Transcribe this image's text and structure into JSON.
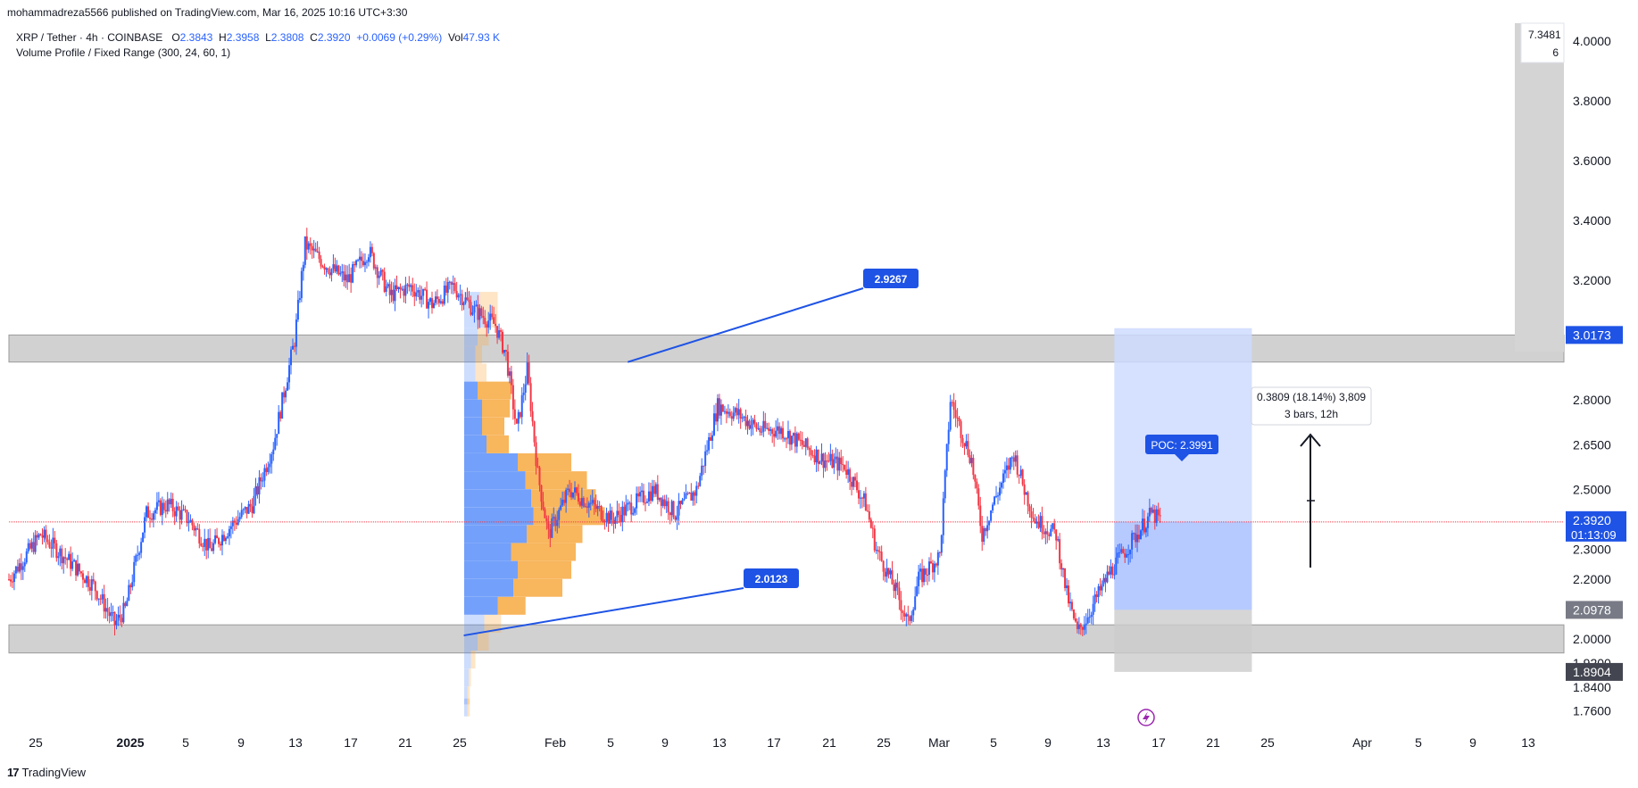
{
  "header": {
    "published": "mohammadreza5566 published on TradingView.com, Mar 16, 2025 10:16 UTC+3:30"
  },
  "legend": {
    "symbol": "XRP / Tether · 4h · COINBASE",
    "o_label": "O",
    "o": "2.3843",
    "h_label": "H",
    "h": "2.3958",
    "l_label": "L",
    "l": "2.3808",
    "c_label": "C",
    "c": "2.3920",
    "change": "+0.0069 (+0.29%)",
    "vol_label": "Vol",
    "vol": "47.93 K",
    "indicator": "Volume Profile / Fixed Range (300, 24, 60, 1)"
  },
  "footer": {
    "logo": "17",
    "brand": "TradingView"
  },
  "colors": {
    "up": "#089981",
    "candle_up": "#2962ff",
    "candle_down": "#f23645",
    "zone": "#cfcfcf",
    "vp_blue": "#5b8ff9",
    "vp_orange": "#f7a941",
    "label_blue": "#1e53e5",
    "measure": "#cfdbff"
  },
  "chart_data": {
    "type": "candlestick",
    "title": "XRP / Tether · 4h · COINBASE",
    "x_ticks": [
      "25",
      "2025",
      "5",
      "9",
      "13",
      "17",
      "21",
      "25",
      "Feb",
      "5",
      "9",
      "13",
      "17",
      "21",
      "25",
      "Mar",
      "5",
      "9",
      "13",
      "17",
      "21",
      "25",
      "Apr",
      "5",
      "9",
      "13"
    ],
    "y_ticks": [
      4.0,
      3.8,
      3.6,
      3.4,
      3.2,
      2.8,
      2.65,
      2.5,
      2.3,
      2.2,
      2.0,
      1.92,
      1.84,
      1.76
    ],
    "y_tick_labels": [
      "4.0000",
      "3.8000",
      "3.6000",
      "3.4000",
      "3.2000",
      "2.8000",
      "2.6500",
      "2.5000",
      "2.3000",
      "2.2000",
      "2.0000",
      "1.9200",
      "1.8400",
      "1.7600"
    ],
    "ylim": [
      1.72,
      4.06
    ],
    "price_path": [
      [
        0,
        2.2
      ],
      [
        3,
        2.35
      ],
      [
        6,
        2.25
      ],
      [
        8,
        2.18
      ],
      [
        10,
        2.05
      ],
      [
        11,
        2.1
      ],
      [
        13,
        2.42
      ],
      [
        15,
        2.45
      ],
      [
        17,
        2.4
      ],
      [
        19,
        2.3
      ],
      [
        21,
        2.38
      ],
      [
        23,
        2.45
      ],
      [
        25,
        2.65
      ],
      [
        27,
        3.0
      ],
      [
        28,
        3.32
      ],
      [
        30,
        3.25
      ],
      [
        32,
        3.2
      ],
      [
        34,
        3.3
      ],
      [
        36,
        3.15
      ],
      [
        38,
        3.18
      ],
      [
        40,
        3.12
      ],
      [
        42,
        3.18
      ],
      [
        44,
        3.1
      ],
      [
        46,
        3.05
      ],
      [
        47,
        2.95
      ],
      [
        48,
        2.7
      ],
      [
        49,
        2.9
      ],
      [
        50,
        2.55
      ],
      [
        51,
        2.35
      ],
      [
        53,
        2.5
      ],
      [
        55,
        2.45
      ],
      [
        57,
        2.4
      ],
      [
        59,
        2.45
      ],
      [
        61,
        2.5
      ],
      [
        63,
        2.42
      ],
      [
        65,
        2.5
      ],
      [
        67,
        2.78
      ],
      [
        69,
        2.75
      ],
      [
        71,
        2.7
      ],
      [
        73,
        2.7
      ],
      [
        75,
        2.65
      ],
      [
        77,
        2.6
      ],
      [
        79,
        2.58
      ],
      [
        81,
        2.45
      ],
      [
        82,
        2.3
      ],
      [
        84,
        2.15
      ],
      [
        85,
        2.05
      ],
      [
        86,
        2.2
      ],
      [
        88,
        2.28
      ],
      [
        89,
        2.8
      ],
      [
        91,
        2.6
      ],
      [
        92,
        2.35
      ],
      [
        93,
        2.45
      ],
      [
        95,
        2.62
      ],
      [
        96,
        2.5
      ],
      [
        97,
        2.4
      ],
      [
        99,
        2.35
      ],
      [
        100,
        2.15
      ],
      [
        101,
        2.02
      ],
      [
        102,
        2.08
      ],
      [
        104,
        2.22
      ],
      [
        106,
        2.32
      ],
      [
        108,
        2.42
      ],
      [
        109,
        2.392
      ]
    ],
    "x_range": [
      0,
      147
    ],
    "current_price": 2.392,
    "current_price_label": "2.3920",
    "countdown": "01:13:09",
    "resistance_zone": [
      2.9267,
      3.0173
    ],
    "support_zone": [
      1.9538,
      2.0478
    ],
    "annotations": [
      {
        "label": "2.9267",
        "value": 2.9267
      },
      {
        "label": "2.0123",
        "value": 2.0123
      },
      {
        "label": "POC: 2.3991",
        "value": 2.3991
      }
    ],
    "axis_markers": [
      {
        "label": "3.0173",
        "value": 3.0173,
        "color": "#1e53e5"
      },
      {
        "label": "2.3920",
        "value": 2.392,
        "color": "#1e53e5"
      },
      {
        "label": "2.0978",
        "value": 2.0978,
        "color": "#787b86"
      },
      {
        "label": "1.8904",
        "value": 1.8904,
        "color": "#434651"
      }
    ],
    "top_right_tooltip": [
      "7.3481",
      "6"
    ],
    "measure_box": {
      "low": 2.0978,
      "high": 3.04,
      "stop": 1.8904
    },
    "measure_tooltip": {
      "line1": "0.3809 (18.14%) 3,809",
      "line2": "3 bars, 12h"
    },
    "volume_profile": {
      "bins": [
        {
          "price": 3.13,
          "up": 0.14,
          "down": 0.16
        },
        {
          "price": 3.07,
          "up": 0.18,
          "down": 0.12
        },
        {
          "price": 3.01,
          "up": 0.12,
          "down": 0.1
        },
        {
          "price": 2.95,
          "up": 0.1,
          "down": 0.06
        },
        {
          "price": 2.89,
          "up": 0.1,
          "down": 0.1
        },
        {
          "price": 2.83,
          "up": 0.12,
          "down": 0.3
        },
        {
          "price": 2.77,
          "up": 0.16,
          "down": 0.25
        },
        {
          "price": 2.71,
          "up": 0.16,
          "down": 0.2
        },
        {
          "price": 2.65,
          "up": 0.2,
          "down": 0.2
        },
        {
          "price": 2.59,
          "up": 0.48,
          "down": 0.48
        },
        {
          "price": 2.53,
          "up": 0.55,
          "down": 0.55
        },
        {
          "price": 2.47,
          "up": 0.6,
          "down": 0.58
        },
        {
          "price": 2.41,
          "up": 0.62,
          "down": 0.64
        },
        {
          "price": 2.35,
          "up": 0.56,
          "down": 0.5
        },
        {
          "price": 2.29,
          "up": 0.42,
          "down": 0.58
        },
        {
          "price": 2.23,
          "up": 0.48,
          "down": 0.48
        },
        {
          "price": 2.17,
          "up": 0.44,
          "down": 0.44
        },
        {
          "price": 2.11,
          "up": 0.3,
          "down": 0.25
        },
        {
          "price": 2.05,
          "up": 0.18,
          "down": 0.15
        },
        {
          "price": 1.99,
          "up": 0.12,
          "down": 0.1
        },
        {
          "price": 1.93,
          "up": 0.06,
          "down": 0.04
        },
        {
          "price": 1.87,
          "up": 0.04,
          "down": 0.02
        },
        {
          "price": 1.81,
          "up": 0.03,
          "down": 0.02
        },
        {
          "price": 1.77,
          "up": 0.03,
          "down": 0.02
        }
      ],
      "poc": 2.3991
    }
  }
}
